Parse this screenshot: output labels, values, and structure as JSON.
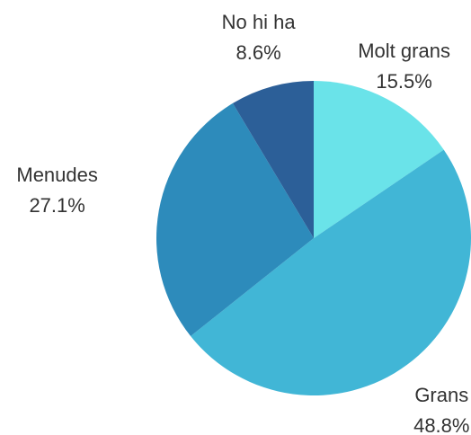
{
  "chart_data": {
    "type": "pie",
    "categories": [
      "Molt grans",
      "Grans",
      "Menudes",
      "No hi ha"
    ],
    "values": [
      15.5,
      48.8,
      27.1,
      8.6
    ],
    "value_labels": [
      "15.5%",
      "48.8%",
      "27.1%",
      "8.6%"
    ],
    "colors": [
      "#6ae3e9",
      "#41b6d6",
      "#2d8bbb",
      "#2c5f98"
    ]
  }
}
